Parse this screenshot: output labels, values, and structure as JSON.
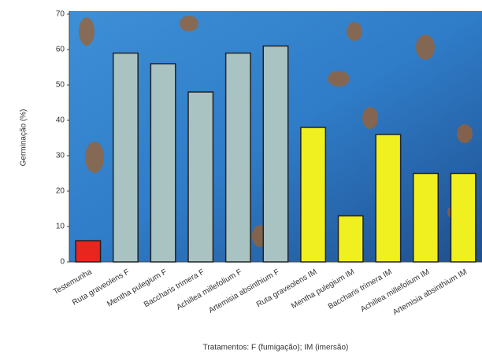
{
  "chart_data": {
    "type": "bar",
    "y_label": "Germinação (%)",
    "x_label": "Tratamentos: F (fumigação); IM (imersão)",
    "categories": [
      "Testemunha",
      "Ruta graveolens F",
      "Mentha pulegium F",
      "Baccharis trimera F",
      "Achillea millefolium F",
      "Artemisia absinthium F",
      "Ruta graveolens IM",
      "Mentha pulegium IM",
      "Baccharis trimera IM",
      "Achillea millefolium IM",
      "Artemisia absinthium IM"
    ],
    "values": [
      6,
      59,
      56,
      48,
      59,
      61,
      38,
      13,
      36,
      25,
      25
    ],
    "colors": [
      "#e8251e",
      "#a9c3c2",
      "#a9c3c2",
      "#a9c3c2",
      "#a9c3c2",
      "#a9c3c2",
      "#f0f020",
      "#f0f020",
      "#f0f020",
      "#f0f020",
      "#f0f020"
    ],
    "ylim": [
      0,
      70
    ],
    "yticks": [
      0,
      10,
      20,
      30,
      40,
      50,
      60,
      70
    ]
  }
}
